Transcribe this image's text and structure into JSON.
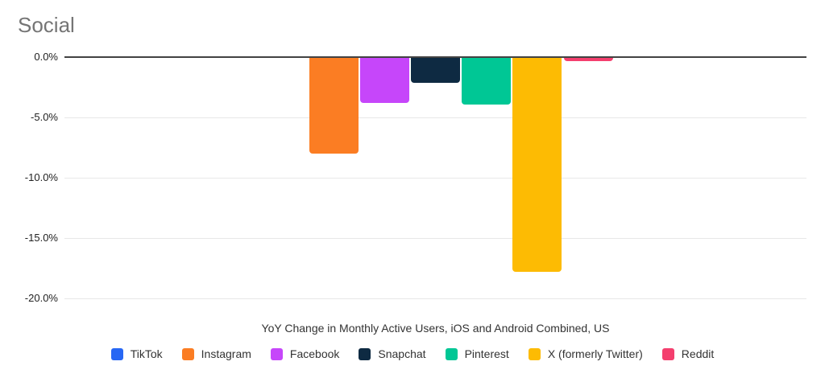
{
  "chart_data": {
    "type": "bar",
    "title": "Social",
    "subtitle": "YoY Change in Monthly Active Users, iOS and Android Combined, US",
    "series": [
      {
        "name": "TikTok",
        "values": [
          0.0
        ],
        "color": "#2767f4"
      },
      {
        "name": "Instagram",
        "values": [
          -8.0
        ],
        "color": "#fb7d23"
      },
      {
        "name": "Facebook",
        "values": [
          -3.8
        ],
        "color": "#c646fa"
      },
      {
        "name": "Snapchat",
        "values": [
          -2.1
        ],
        "color": "#0e2a42"
      },
      {
        "name": "Pinterest",
        "values": [
          -3.9
        ],
        "color": "#00c795"
      },
      {
        "name": "X (formerly Twitter)",
        "values": [
          -17.8
        ],
        "color": "#fdbb03"
      },
      {
        "name": "Reddit",
        "values": [
          -0.3
        ],
        "color": "#f43f6e"
      }
    ],
    "ylim": [
      -20,
      0
    ],
    "y_ticks": [
      {
        "value": 0,
        "label": "0.0%"
      },
      {
        "value": -5,
        "label": "-5.0%"
      },
      {
        "value": -10,
        "label": "-10.0%"
      },
      {
        "value": -15,
        "label": "-15.0%"
      },
      {
        "value": -20,
        "label": "-20.0%"
      }
    ],
    "grid": true,
    "legend_position": "bottom"
  },
  "colors": {
    "title_text": "#757575",
    "axis_line": "#424242",
    "gridline": "#e8e8e8",
    "label_text": "#222222",
    "body_text": "#333333"
  }
}
